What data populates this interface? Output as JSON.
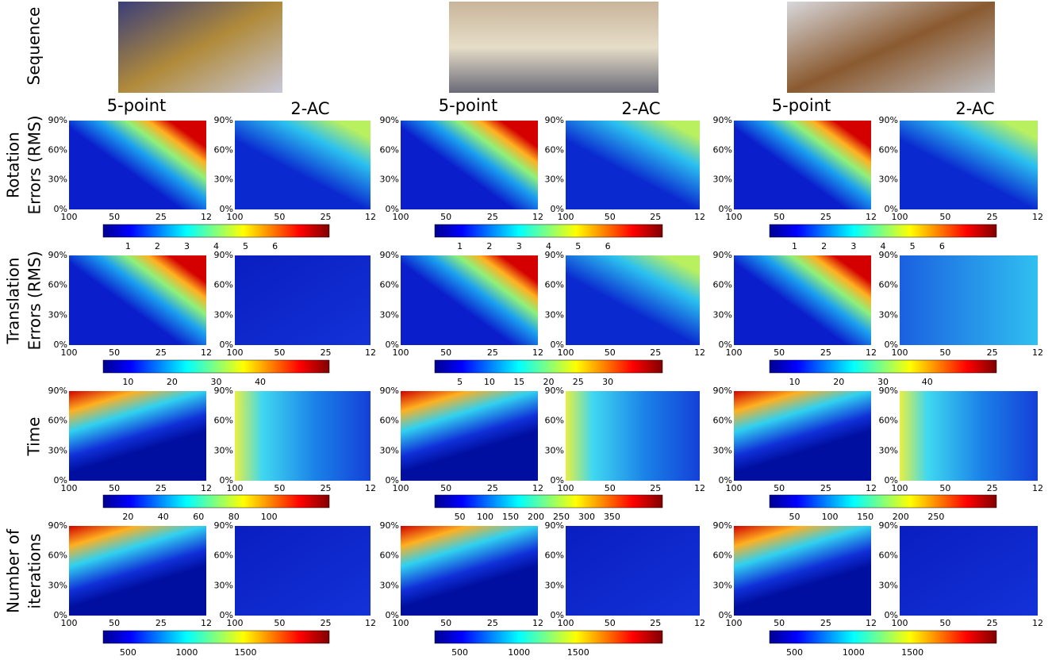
{
  "row_labels": [
    [
      "Sequence"
    ],
    [
      "Rotation",
      "Errors (RMS)"
    ],
    [
      "Translation",
      "Errors (RMS)"
    ],
    [
      "Time"
    ],
    [
      "Number of",
      "iterations"
    ]
  ],
  "panel_titles": [
    "5-point",
    "2-AC"
  ],
  "y_ticks": [
    "0%",
    "30%",
    "60%",
    "90%"
  ],
  "x_ticks": [
    100,
    50,
    25,
    12
  ],
  "colorbar_ticks": [
    [
      [
        1,
        2,
        3,
        4,
        5,
        6
      ],
      [
        1,
        2,
        3,
        4,
        5,
        6
      ],
      [
        1,
        2,
        3,
        4,
        5,
        6
      ]
    ],
    [
      [
        10,
        20,
        30,
        40
      ],
      [
        5,
        10,
        15,
        20,
        25,
        30
      ],
      [
        10,
        20,
        30,
        40
      ]
    ],
    [
      [
        20,
        40,
        60,
        80,
        100
      ],
      [
        50,
        100,
        150,
        200,
        250,
        300,
        350
      ],
      [
        50,
        100,
        150,
        200,
        250
      ]
    ],
    [
      [
        500,
        1000,
        1500
      ],
      [
        500,
        1000,
        1500
      ],
      [
        500,
        1000,
        1500
      ]
    ]
  ]
}
